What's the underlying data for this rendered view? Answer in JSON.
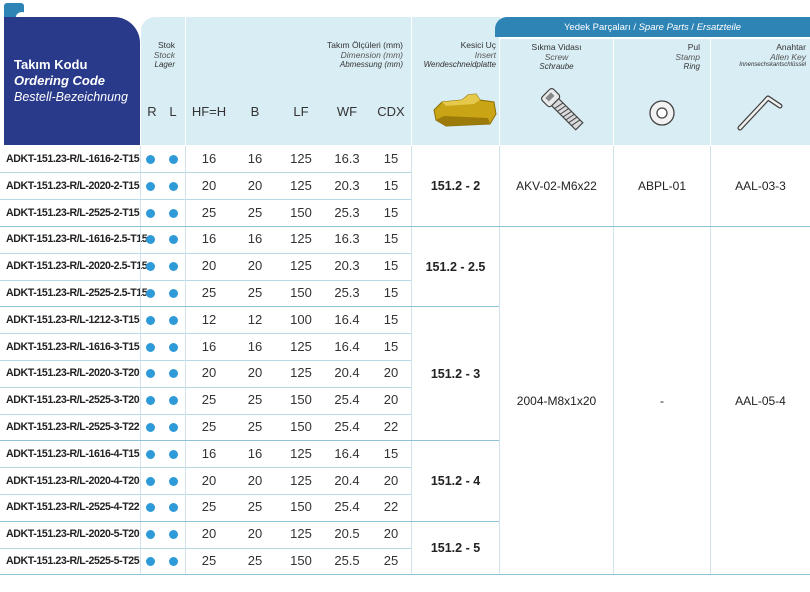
{
  "header": {
    "code": {
      "tr": "Takım Kodu",
      "en": "Ordering Code",
      "de": "Bestell-Bezeichnung"
    },
    "stock": {
      "tr": "Stok",
      "en": "Stock",
      "de": "Lager",
      "r": "R",
      "l": "L"
    },
    "dims": {
      "tr": "Takım Ölçüleri (mm)",
      "en": "Dimension (mm)",
      "de": "Abmessung (mm)",
      "cols": [
        "HF=H",
        "B",
        "LF",
        "WF",
        "CDX"
      ]
    },
    "insert": {
      "tr": "Kesici Uç",
      "en": "Insert",
      "de": "Wendeschneidplatte"
    },
    "spare": {
      "tr": "Yedek Parçaları",
      "en": "Spare Parts",
      "de": "Ersatzteile",
      "sep": "/"
    },
    "screw": {
      "tr": "Sıkma Vidası",
      "en": "Screw",
      "de": "Schraube"
    },
    "stamp": {
      "tr": "Pul",
      "en": "Stamp",
      "de": "Ring"
    },
    "key": {
      "tr": "Anahtar",
      "en": "Allen Key",
      "de": "Innensechskantschlüssel"
    }
  },
  "icons": {
    "insert": "insert-icon",
    "screw": "screw-icon",
    "stamp": "washer-icon",
    "key": "allen-key-icon",
    "dot_color": "#2e9bd8",
    "header_dark": "#293a8a",
    "header_light": "#d9edf4"
  },
  "rows": [
    {
      "code": "ADKT-151.23-R/L-1616-2-T15",
      "hf": "16",
      "b": "16",
      "lf": "125",
      "wf": "16.3",
      "cdx": "15"
    },
    {
      "code": "ADKT-151.23-R/L-2020-2-T15",
      "hf": "20",
      "b": "20",
      "lf": "125",
      "wf": "20.3",
      "cdx": "15"
    },
    {
      "code": "ADKT-151.23-R/L-2525-2-T15",
      "hf": "25",
      "b": "25",
      "lf": "150",
      "wf": "25.3",
      "cdx": "15"
    },
    {
      "code": "ADKT-151.23-R/L-1616-2.5-T15",
      "hf": "16",
      "b": "16",
      "lf": "125",
      "wf": "16.3",
      "cdx": "15"
    },
    {
      "code": "ADKT-151.23-R/L-2020-2.5-T15",
      "hf": "20",
      "b": "20",
      "lf": "125",
      "wf": "20.3",
      "cdx": "15"
    },
    {
      "code": "ADKT-151.23-R/L-2525-2.5-T15",
      "hf": "25",
      "b": "25",
      "lf": "150",
      "wf": "25.3",
      "cdx": "15"
    },
    {
      "code": "ADKT-151.23-R/L-1212-3-T15",
      "hf": "12",
      "b": "12",
      "lf": "100",
      "wf": "16.4",
      "cdx": "15"
    },
    {
      "code": "ADKT-151.23-R/L-1616-3-T15",
      "hf": "16",
      "b": "16",
      "lf": "125",
      "wf": "16.4",
      "cdx": "15"
    },
    {
      "code": "ADKT-151.23-R/L-2020-3-T20",
      "hf": "20",
      "b": "20",
      "lf": "125",
      "wf": "20.4",
      "cdx": "20"
    },
    {
      "code": "ADKT-151.23-R/L-2525-3-T20",
      "hf": "25",
      "b": "25",
      "lf": "150",
      "wf": "25.4",
      "cdx": "20"
    },
    {
      "code": "ADKT-151.23-R/L-2525-3-T22",
      "hf": "25",
      "b": "25",
      "lf": "150",
      "wf": "25.4",
      "cdx": "22"
    },
    {
      "code": "ADKT-151.23-R/L-1616-4-T15",
      "hf": "16",
      "b": "16",
      "lf": "125",
      "wf": "16.4",
      "cdx": "15"
    },
    {
      "code": "ADKT-151.23-R/L-2020-4-T20",
      "hf": "20",
      "b": "20",
      "lf": "125",
      "wf": "20.4",
      "cdx": "20"
    },
    {
      "code": "ADKT-151.23-R/L-2525-4-T22",
      "hf": "25",
      "b": "25",
      "lf": "150",
      "wf": "25.4",
      "cdx": "22"
    },
    {
      "code": "ADKT-151.23-R/L-2020-5-T20",
      "hf": "20",
      "b": "20",
      "lf": "125",
      "wf": "20.5",
      "cdx": "20"
    },
    {
      "code": "ADKT-151.23-R/L-2525-5-T25",
      "hf": "25",
      "b": "25",
      "lf": "150",
      "wf": "25.5",
      "cdx": "25"
    }
  ],
  "inserts": [
    {
      "label": "151.2 - 2",
      "rows": 3
    },
    {
      "label": "151.2 - 2.5",
      "rows": 3
    },
    {
      "label": "151.2 - 3",
      "rows": 5
    },
    {
      "label": "151.2 - 4",
      "rows": 3
    },
    {
      "label": "151.2 - 5",
      "rows": 2
    }
  ],
  "spares": [
    {
      "screw": "AKV-02-M6x22",
      "stamp": "ABPL-01",
      "key": "AAL-03-3",
      "rows": 3
    },
    {
      "screw": "2004-M8x1x20",
      "stamp": "-",
      "key": "AAL-05-4",
      "rows": 13
    }
  ]
}
